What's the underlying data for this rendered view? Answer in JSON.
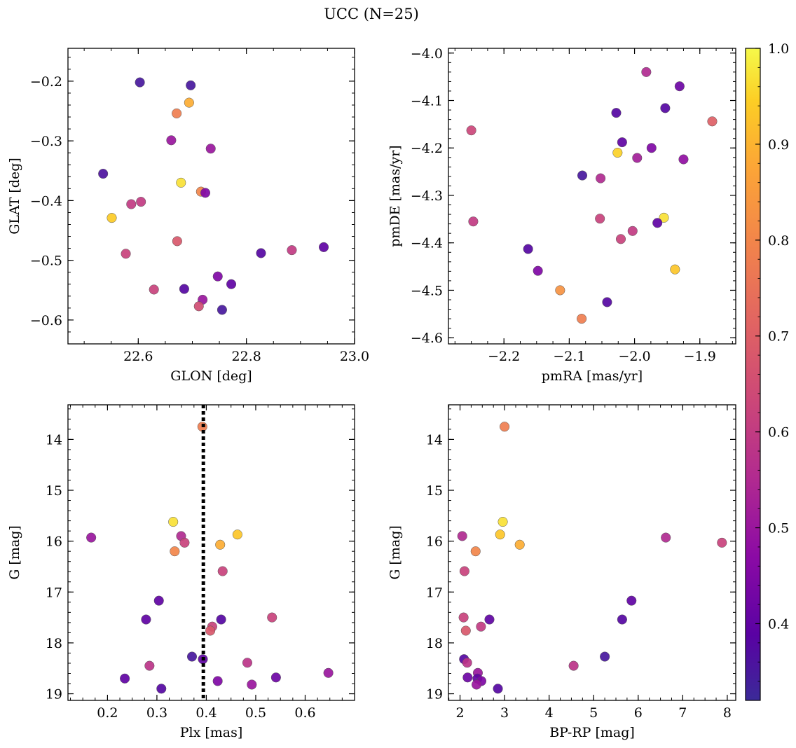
{
  "figure": {
    "title": "UCC (N=25)"
  },
  "colorbar": {
    "range": [
      0.32,
      1.0
    ],
    "ticks": [
      0.4,
      0.5,
      0.6,
      0.7,
      0.8,
      0.9,
      1.0
    ],
    "tick_labels": [
      "0.4",
      "0.5",
      "0.6",
      "0.7",
      "0.8",
      "0.9",
      "1.0"
    ],
    "colormap": "plasma"
  },
  "chart_data": [
    {
      "type": "scatter",
      "xlabel": "GLON [deg]",
      "ylabel": "GLAT [deg]",
      "xlim": [
        22.47,
        23.0
      ],
      "ylim": [
        -0.64,
        -0.145
      ],
      "xticks": [
        22.6,
        22.8,
        23.0
      ],
      "xtick_labels": [
        "22.6",
        "22.8",
        "23.0"
      ],
      "yticks": [
        -0.2,
        -0.3,
        -0.4,
        -0.5,
        -0.6
      ],
      "ytick_labels": [
        "−0.2",
        "−0.3",
        "−0.4",
        "−0.5",
        "−0.6"
      ],
      "points": [
        {
          "x": 22.603,
          "y": -0.202,
          "c": 0.35
        },
        {
          "x": 22.697,
          "y": -0.207,
          "c": 0.35
        },
        {
          "x": 22.671,
          "y": -0.254,
          "c": 0.78
        },
        {
          "x": 22.694,
          "y": -0.236,
          "c": 0.89
        },
        {
          "x": 22.661,
          "y": -0.299,
          "c": 0.5
        },
        {
          "x": 22.734,
          "y": -0.313,
          "c": 0.5
        },
        {
          "x": 22.535,
          "y": -0.355,
          "c": 0.36
        },
        {
          "x": 22.679,
          "y": -0.37,
          "c": 0.97
        },
        {
          "x": 22.716,
          "y": -0.385,
          "c": 0.8
        },
        {
          "x": 22.724,
          "y": -0.387,
          "c": 0.45
        },
        {
          "x": 22.587,
          "y": -0.406,
          "c": 0.6
        },
        {
          "x": 22.605,
          "y": -0.402,
          "c": 0.6
        },
        {
          "x": 22.551,
          "y": -0.429,
          "c": 0.94
        },
        {
          "x": 22.672,
          "y": -0.468,
          "c": 0.68
        },
        {
          "x": 22.577,
          "y": -0.489,
          "c": 0.62
        },
        {
          "x": 22.827,
          "y": -0.488,
          "c": 0.38
        },
        {
          "x": 22.884,
          "y": -0.483,
          "c": 0.6
        },
        {
          "x": 22.943,
          "y": -0.478,
          "c": 0.4
        },
        {
          "x": 22.747,
          "y": -0.527,
          "c": 0.45
        },
        {
          "x": 22.772,
          "y": -0.54,
          "c": 0.4
        },
        {
          "x": 22.629,
          "y": -0.549,
          "c": 0.62
        },
        {
          "x": 22.685,
          "y": -0.548,
          "c": 0.38
        },
        {
          "x": 22.719,
          "y": -0.566,
          "c": 0.5
        },
        {
          "x": 22.712,
          "y": -0.577,
          "c": 0.65
        },
        {
          "x": 22.755,
          "y": -0.583,
          "c": 0.35
        }
      ]
    },
    {
      "type": "scatter",
      "xlabel": "pmRA [mas/yr]",
      "ylabel": "pmDE [mas/yr]",
      "xlim": [
        -2.285,
        -1.845
      ],
      "ylim": [
        -4.613,
        -3.99
      ],
      "xticks": [
        -2.2,
        -2.1,
        -2.0,
        -1.9
      ],
      "xtick_labels": [
        "−2.2",
        "−2.1",
        "−2.0",
        "−1.9"
      ],
      "yticks": [
        -4.0,
        -4.1,
        -4.2,
        -4.3,
        -4.4,
        -4.5,
        -4.6
      ],
      "ytick_labels": [
        "−4.0",
        "−4.1",
        "−4.2",
        "−4.3",
        "−4.4",
        "−4.5",
        "−4.6"
      ],
      "points": [
        {
          "x": -1.982,
          "y": -4.04,
          "c": 0.55
        },
        {
          "x": -1.931,
          "y": -4.07,
          "c": 0.42
        },
        {
          "x": -1.953,
          "y": -4.116,
          "c": 0.38
        },
        {
          "x": -2.028,
          "y": -4.126,
          "c": 0.38
        },
        {
          "x": -1.881,
          "y": -4.144,
          "c": 0.7
        },
        {
          "x": -2.25,
          "y": -4.163,
          "c": 0.63
        },
        {
          "x": -2.019,
          "y": -4.188,
          "c": 0.4
        },
        {
          "x": -1.974,
          "y": -4.2,
          "c": 0.45
        },
        {
          "x": -2.026,
          "y": -4.21,
          "c": 0.95
        },
        {
          "x": -1.996,
          "y": -4.221,
          "c": 0.52
        },
        {
          "x": -1.925,
          "y": -4.224,
          "c": 0.48
        },
        {
          "x": -2.08,
          "y": -4.258,
          "c": 0.35
        },
        {
          "x": -2.052,
          "y": -4.264,
          "c": 0.55
        },
        {
          "x": -1.955,
          "y": -4.347,
          "c": 0.97
        },
        {
          "x": -2.053,
          "y": -4.349,
          "c": 0.62
        },
        {
          "x": -2.247,
          "y": -4.355,
          "c": 0.6
        },
        {
          "x": -1.965,
          "y": -4.358,
          "c": 0.4
        },
        {
          "x": -2.003,
          "y": -4.375,
          "c": 0.6
        },
        {
          "x": -2.021,
          "y": -4.392,
          "c": 0.62
        },
        {
          "x": -2.163,
          "y": -4.413,
          "c": 0.38
        },
        {
          "x": -2.148,
          "y": -4.459,
          "c": 0.45
        },
        {
          "x": -1.938,
          "y": -4.456,
          "c": 0.93
        },
        {
          "x": -2.114,
          "y": -4.5,
          "c": 0.83
        },
        {
          "x": -2.042,
          "y": -4.525,
          "c": 0.38
        },
        {
          "x": -2.081,
          "y": -4.56,
          "c": 0.78
        }
      ]
    },
    {
      "type": "scatter",
      "xlabel": "Plx [mas]",
      "ylabel": "G [mag]",
      "xlim": [
        0.12,
        0.7
      ],
      "ylim": [
        19.13,
        13.32
      ],
      "xticks": [
        0.2,
        0.3,
        0.4,
        0.5,
        0.6
      ],
      "xtick_labels": [
        "0.2",
        "0.3",
        "0.4",
        "0.5",
        "0.6"
      ],
      "yticks": [
        14,
        15,
        16,
        17,
        18,
        19
      ],
      "ytick_labels": [
        "14",
        "15",
        "16",
        "17",
        "18",
        "19"
      ],
      "vline_x": 0.394,
      "points": [
        {
          "x": 0.392,
          "y": 13.75,
          "c": 0.78
        },
        {
          "x": 0.333,
          "y": 15.62,
          "c": 0.97
        },
        {
          "x": 0.463,
          "y": 15.87,
          "c": 0.93
        },
        {
          "x": 0.167,
          "y": 15.93,
          "c": 0.5
        },
        {
          "x": 0.349,
          "y": 15.9,
          "c": 0.55
        },
        {
          "x": 0.356,
          "y": 16.03,
          "c": 0.62
        },
        {
          "x": 0.428,
          "y": 16.07,
          "c": 0.89
        },
        {
          "x": 0.336,
          "y": 16.2,
          "c": 0.8
        },
        {
          "x": 0.433,
          "y": 16.59,
          "c": 0.62
        },
        {
          "x": 0.304,
          "y": 17.17,
          "c": 0.4
        },
        {
          "x": 0.278,
          "y": 17.54,
          "c": 0.4
        },
        {
          "x": 0.43,
          "y": 17.54,
          "c": 0.38
        },
        {
          "x": 0.533,
          "y": 17.5,
          "c": 0.62
        },
        {
          "x": 0.412,
          "y": 17.68,
          "c": 0.62
        },
        {
          "x": 0.408,
          "y": 17.76,
          "c": 0.68
        },
        {
          "x": 0.371,
          "y": 18.27,
          "c": 0.35
        },
        {
          "x": 0.393,
          "y": 18.32,
          "c": 0.4
        },
        {
          "x": 0.483,
          "y": 18.39,
          "c": 0.58
        },
        {
          "x": 0.285,
          "y": 18.45,
          "c": 0.58
        },
        {
          "x": 0.647,
          "y": 18.59,
          "c": 0.5
        },
        {
          "x": 0.235,
          "y": 18.7,
          "c": 0.4
        },
        {
          "x": 0.541,
          "y": 18.68,
          "c": 0.42
        },
        {
          "x": 0.423,
          "y": 18.75,
          "c": 0.45
        },
        {
          "x": 0.492,
          "y": 18.82,
          "c": 0.5
        },
        {
          "x": 0.309,
          "y": 18.9,
          "c": 0.38
        }
      ]
    },
    {
      "type": "scatter",
      "xlabel": "BP-RP [mag]",
      "ylabel": "G [mag]",
      "xlim": [
        1.74,
        8.19
      ],
      "ylim": [
        19.13,
        13.32
      ],
      "xticks": [
        2,
        3,
        4,
        5,
        6,
        7,
        8
      ],
      "xtick_labels": [
        "2",
        "3",
        "4",
        "5",
        "6",
        "7",
        "8"
      ],
      "yticks": [
        14,
        15,
        16,
        17,
        18,
        19
      ],
      "ytick_labels": [
        "14",
        "15",
        "16",
        "17",
        "18",
        "19"
      ],
      "points": [
        {
          "x": 3.0,
          "y": 13.75,
          "c": 0.78
        },
        {
          "x": 2.96,
          "y": 15.62,
          "c": 0.97
        },
        {
          "x": 2.9,
          "y": 15.87,
          "c": 0.93
        },
        {
          "x": 2.05,
          "y": 15.9,
          "c": 0.55
        },
        {
          "x": 6.62,
          "y": 15.93,
          "c": 0.55
        },
        {
          "x": 7.88,
          "y": 16.03,
          "c": 0.62
        },
        {
          "x": 3.34,
          "y": 16.07,
          "c": 0.89
        },
        {
          "x": 2.35,
          "y": 16.2,
          "c": 0.8
        },
        {
          "x": 2.1,
          "y": 16.59,
          "c": 0.62
        },
        {
          "x": 5.85,
          "y": 17.17,
          "c": 0.4
        },
        {
          "x": 2.08,
          "y": 17.5,
          "c": 0.62
        },
        {
          "x": 2.66,
          "y": 17.54,
          "c": 0.4
        },
        {
          "x": 5.64,
          "y": 17.54,
          "c": 0.38
        },
        {
          "x": 2.47,
          "y": 17.68,
          "c": 0.6
        },
        {
          "x": 2.13,
          "y": 17.76,
          "c": 0.68
        },
        {
          "x": 5.25,
          "y": 18.27,
          "c": 0.35
        },
        {
          "x": 2.09,
          "y": 18.32,
          "c": 0.38
        },
        {
          "x": 2.16,
          "y": 18.39,
          "c": 0.58
        },
        {
          "x": 4.55,
          "y": 18.45,
          "c": 0.58
        },
        {
          "x": 2.4,
          "y": 18.59,
          "c": 0.5
        },
        {
          "x": 2.17,
          "y": 18.68,
          "c": 0.42
        },
        {
          "x": 2.39,
          "y": 18.7,
          "c": 0.4
        },
        {
          "x": 2.48,
          "y": 18.75,
          "c": 0.45
        },
        {
          "x": 2.37,
          "y": 18.82,
          "c": 0.5
        },
        {
          "x": 2.85,
          "y": 18.9,
          "c": 0.38
        }
      ]
    }
  ]
}
